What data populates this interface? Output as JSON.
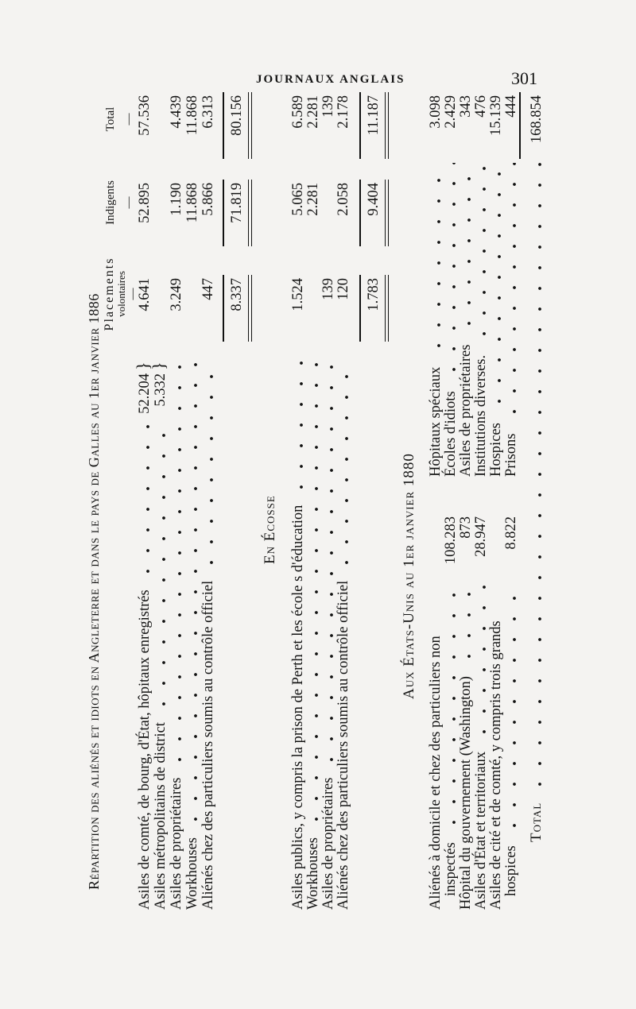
{
  "running_head": "JOURNAUX ANGLAIS",
  "page_number": "301",
  "title": "Répartition des aliénés et idiots en Angleterre et dans le pays de Galles au 1er janvier 1886",
  "columns": {
    "placements": "Placements",
    "placements2": "volontaires",
    "indigents": "Indigents",
    "total": "Total",
    "dash": "—"
  },
  "england": {
    "rows": [
      {
        "label": "Asiles de comté, de bourg, d'État, hôpitaux enregistrés",
        "sub": "52.204",
        "placements": "4.641",
        "indigents": "52.895",
        "total": "57.536"
      },
      {
        "label": "Asiles métropolitains de district",
        "sub": "5.332",
        "placements": "",
        "indigents": "",
        "total": ""
      },
      {
        "label": "Asiles de propriétaires",
        "sub": "",
        "placements": "3.249",
        "indigents": "1.190",
        "total": "4.439"
      },
      {
        "label": "Workhouses",
        "sub": "",
        "placements": "",
        "indigents": "11.868",
        "total": "11.868"
      },
      {
        "label": "Aliénés chez des particuliers soumis au contrôle officiel",
        "sub": "",
        "placements": "447",
        "indigents": "5.866",
        "total": "6.313"
      }
    ],
    "totals": {
      "placements": "8.337",
      "indigents": "71.819",
      "total": "80.156"
    }
  },
  "scotland": {
    "heading": "En Écosse",
    "rows": [
      {
        "label": "Asiles publics, y compris la prison de Perth et les école s d'éducation",
        "placements": "1.524",
        "indigents": "5.065",
        "total": "6.589"
      },
      {
        "label": "Workhouses",
        "placements": "",
        "indigents": "2.281",
        "total": "2.281"
      },
      {
        "label": "Asiles de propriétaires",
        "placements": "139",
        "indigents": "",
        "total": "139"
      },
      {
        "label": "Aliénés chez des particuliers soumis au contrôle officiel",
        "placements": "120",
        "indigents": "2.058",
        "total": "2.178"
      }
    ],
    "totals": {
      "placements": "1.783",
      "indigents": "9.404",
      "total": "11.187"
    }
  },
  "usa": {
    "heading": "Aux États-Unis au 1er janvier 1880",
    "left_rows": [
      {
        "label": "Aliénés à domicile et chez des particuliers non",
        "value": ""
      },
      {
        "label": "inspectés",
        "value": "108.283"
      },
      {
        "label": "Hôpital du gouvernement (Washington)",
        "value": "873"
      },
      {
        "label": "Asiles d'État et territoriaux",
        "value": "28.947"
      },
      {
        "label": "Asiles de cité et de comté, y compris trois grands",
        "value": ""
      },
      {
        "label": "hospices",
        "value": "8.822"
      }
    ],
    "right_rows": [
      {
        "label": "Hôpitaux spéciaux",
        "total": "3.098"
      },
      {
        "label": "Écoles d'idiots",
        "total": "2.429"
      },
      {
        "label": "Asiles de propriétaires",
        "total": "343"
      },
      {
        "label": "Institutions diverses.",
        "total": "476"
      },
      {
        "label": "Hospices",
        "total": "15.139"
      },
      {
        "label": "Prisons",
        "total": "444"
      }
    ],
    "total_label": "Total",
    "grand_total": "168.854"
  }
}
